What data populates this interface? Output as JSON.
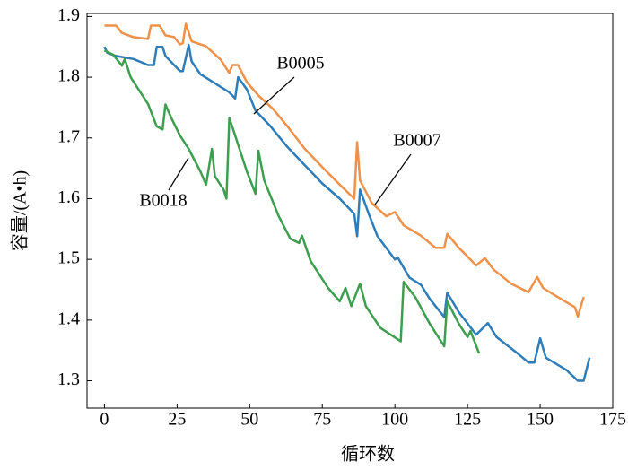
{
  "chart_data": {
    "type": "line",
    "xlabel": "循环数",
    "ylabel": "容量/(A•h)",
    "xlim": [
      -6,
      175
    ],
    "ylim": [
      1.255,
      1.905
    ],
    "xticks": [
      0,
      25,
      50,
      75,
      100,
      125,
      150,
      175
    ],
    "yticks": [
      1.3,
      1.4,
      1.5,
      1.6,
      1.7,
      1.8,
      1.9
    ],
    "grid": false,
    "annotations": [
      "B0005",
      "B0007",
      "B0018"
    ],
    "series": [
      {
        "name": "B0005",
        "color": "#2e7db9",
        "x": [
          0,
          1,
          4,
          10,
          15,
          17,
          18,
          20,
          21,
          24,
          26,
          27,
          29,
          30,
          33,
          38,
          43,
          45,
          46,
          49,
          52,
          57,
          63,
          69,
          75,
          81,
          86,
          87,
          88,
          91,
          94,
          100,
          101,
          105,
          109,
          112,
          117,
          118,
          122,
          128,
          132,
          135,
          142,
          146,
          148,
          150,
          152,
          159,
          163,
          165,
          167
        ],
        "values": [
          1.85,
          1.84,
          1.835,
          1.83,
          1.82,
          1.82,
          1.85,
          1.85,
          1.835,
          1.82,
          1.81,
          1.81,
          1.853,
          1.826,
          1.805,
          1.79,
          1.775,
          1.765,
          1.8,
          1.78,
          1.745,
          1.72,
          1.685,
          1.655,
          1.625,
          1.6,
          1.575,
          1.538,
          1.615,
          1.575,
          1.538,
          1.5,
          1.503,
          1.47,
          1.458,
          1.435,
          1.405,
          1.445,
          1.413,
          1.376,
          1.395,
          1.372,
          1.346,
          1.33,
          1.33,
          1.37,
          1.338,
          1.318,
          1.3,
          1.3,
          1.338
        ]
      },
      {
        "name": "B0007",
        "color": "#ee914a",
        "x": [
          0,
          4,
          6,
          10,
          15,
          16,
          19,
          21,
          24,
          26,
          27,
          28,
          30,
          35,
          40,
          43,
          44,
          46,
          49,
          53,
          58,
          63,
          69,
          75,
          81,
          86,
          87,
          88,
          92,
          97,
          100,
          103,
          109,
          114,
          117,
          118,
          122,
          128,
          131,
          134,
          140,
          146,
          149,
          151,
          156,
          162,
          163,
          165
        ],
        "values": [
          1.885,
          1.885,
          1.873,
          1.866,
          1.863,
          1.885,
          1.885,
          1.869,
          1.866,
          1.854,
          1.856,
          1.888,
          1.859,
          1.851,
          1.829,
          1.807,
          1.82,
          1.82,
          1.792,
          1.77,
          1.748,
          1.719,
          1.682,
          1.652,
          1.623,
          1.6,
          1.693,
          1.63,
          1.593,
          1.571,
          1.578,
          1.556,
          1.539,
          1.519,
          1.519,
          1.542,
          1.519,
          1.49,
          1.502,
          1.483,
          1.46,
          1.446,
          1.471,
          1.453,
          1.438,
          1.421,
          1.406,
          1.438
        ]
      },
      {
        "name": "B0018",
        "color": "#3d9e4f",
        "x": [
          0,
          3,
          6,
          7,
          9,
          12,
          15,
          18,
          20,
          21,
          23,
          26,
          29,
          33,
          35,
          37,
          38,
          41,
          42,
          43,
          45,
          49,
          52,
          53,
          55,
          60,
          64,
          67,
          68,
          71,
          77,
          81,
          83,
          85,
          88,
          90,
          95,
          102,
          103,
          107,
          112,
          117,
          118,
          122,
          125,
          126,
          129
        ],
        "values": [
          1.844,
          1.837,
          1.819,
          1.83,
          1.8,
          1.778,
          1.756,
          1.719,
          1.714,
          1.755,
          1.733,
          1.704,
          1.682,
          1.645,
          1.623,
          1.682,
          1.637,
          1.615,
          1.6,
          1.733,
          1.704,
          1.645,
          1.608,
          1.679,
          1.63,
          1.571,
          1.534,
          1.527,
          1.539,
          1.497,
          1.453,
          1.431,
          1.453,
          1.423,
          1.46,
          1.423,
          1.387,
          1.365,
          1.463,
          1.438,
          1.394,
          1.357,
          1.431,
          1.394,
          1.372,
          1.382,
          1.345
        ]
      }
    ]
  }
}
